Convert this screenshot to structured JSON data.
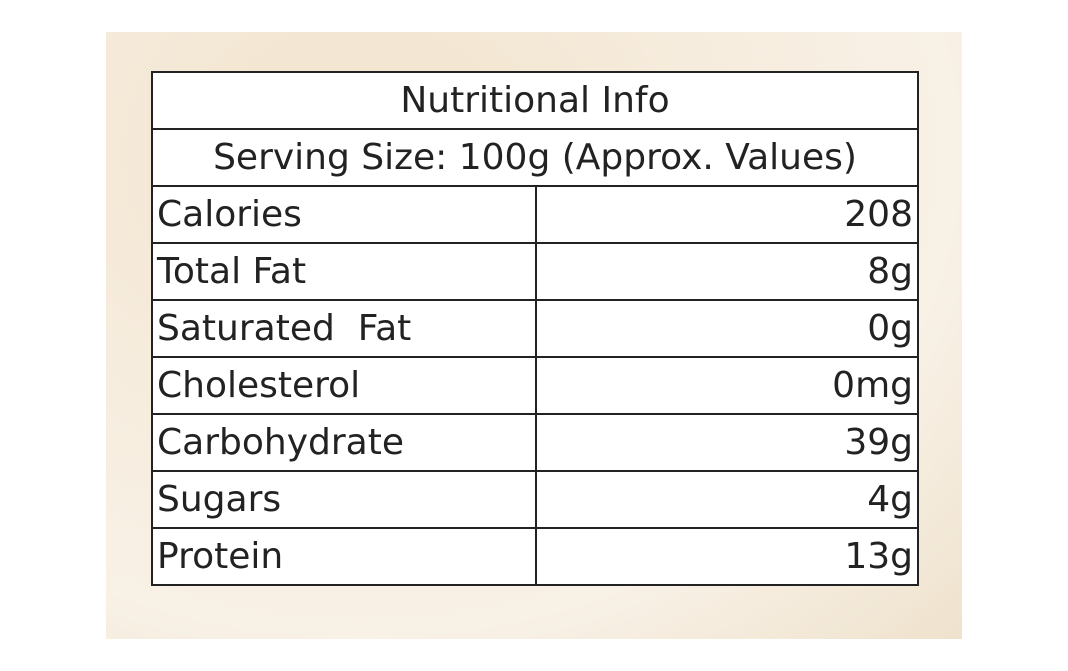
{
  "table": {
    "title": "Nutritional Info",
    "subtitle": "Serving Size: 100g (Approx. Values)",
    "rows": [
      [
        "Calories",
        "208"
      ],
      [
        "Total Fat",
        "8g"
      ],
      [
        "Saturated  Fat",
        "0g"
      ],
      [
        "Cholesterol",
        "0mg"
      ],
      [
        "Carbohydrate",
        "39g"
      ],
      [
        "Sugars",
        "4g"
      ],
      [
        "Protein",
        "13g"
      ]
    ]
  }
}
